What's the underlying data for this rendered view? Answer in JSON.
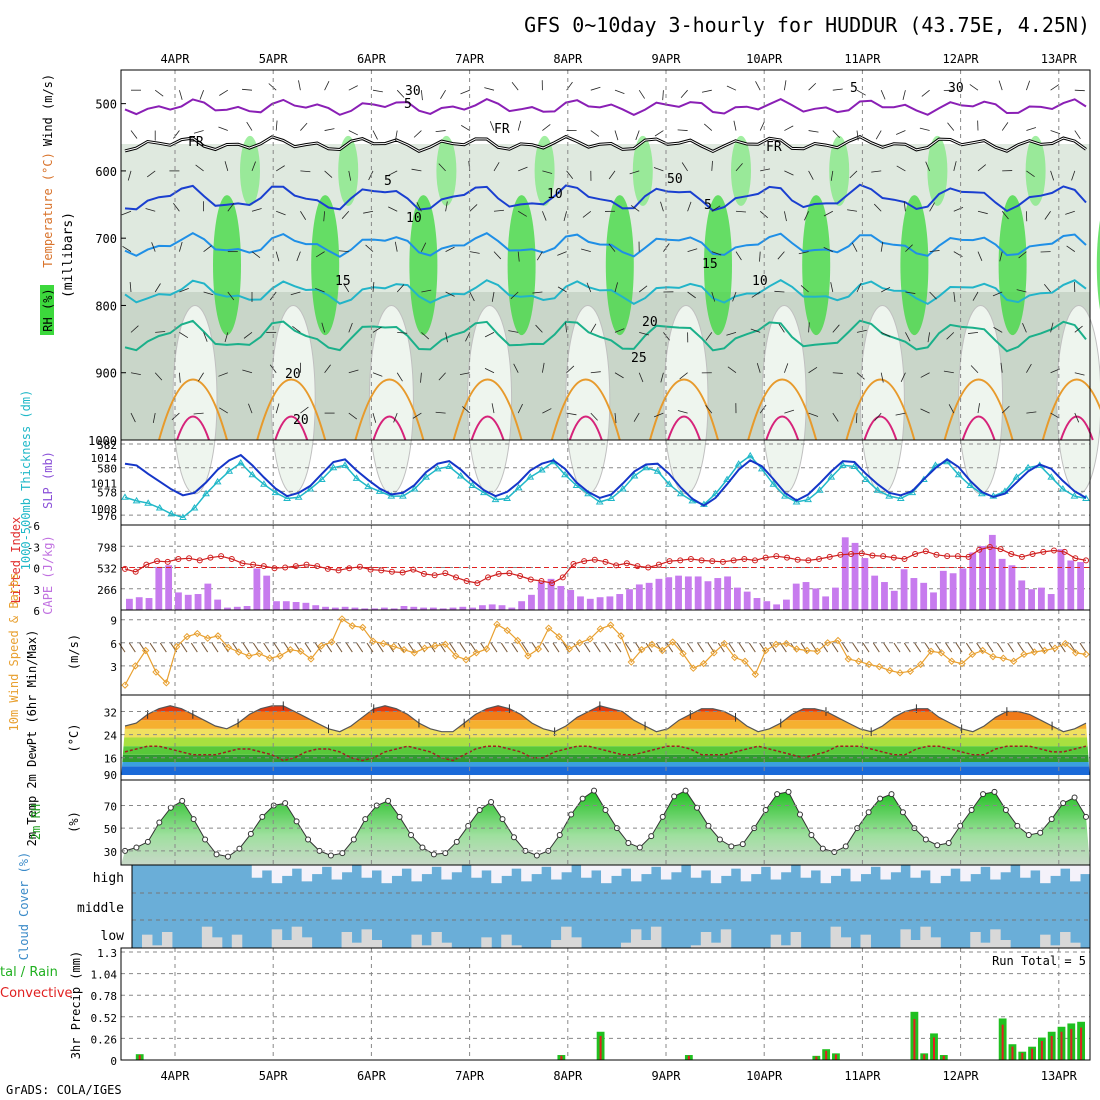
{
  "title": "GFS 0~10day 3-hourly for HUDDUR (43.75E, 4.25N)",
  "credit": "GrADS: COLA/IGES",
  "dates": [
    "4APR",
    "5APR",
    "6APR",
    "7APR",
    "8APR",
    "9APR",
    "10APR",
    "11APR",
    "12APR",
    "13APR"
  ],
  "colors": {
    "panel_border": "#000000",
    "grid": "#999999"
  },
  "panels": {
    "upper": {
      "ylabel": "(millibars)",
      "yticks": [
        500,
        600,
        700,
        800,
        900,
        1000
      ],
      "legend": {
        "rh": "RH (%)",
        "temp": "Temperature (°C)",
        "wind": "Wind (m/s)"
      },
      "contour_labels": [
        "5",
        "FR",
        "FR",
        "FR",
        "5",
        "5",
        "10",
        "15",
        "15",
        "10",
        "20",
        "20",
        "25",
        "20",
        "5",
        "30",
        "30",
        "50",
        "10"
      ]
    },
    "slp": {
      "ylabel_left": "1000-500mb Thickness (dm)",
      "ylabel_right": "SLP (mb)",
      "yticks_left": [
        576,
        578,
        580,
        582
      ],
      "yticks_right": [
        1008,
        1011,
        1014
      ]
    },
    "cape": {
      "ylabel_left": "Lifted Index",
      "ylabel_right": "CAPE (J/kg)",
      "yticks_left": [
        "6",
        "3",
        "0",
        "-3",
        "-6"
      ],
      "yticks_right": [
        266,
        532,
        798
      ]
    },
    "wind10m": {
      "ylabel": "10m Wind Speed & Barbs",
      "unit": "(m/s)",
      "yticks": [
        3,
        6,
        9
      ]
    },
    "temp2m": {
      "ylabel": "2m Temp 2m DewPt (6hr Min/Max)",
      "unit": "(°C)",
      "yticks": [
        16,
        24,
        32
      ],
      "extra_tick": "90"
    },
    "rh2m": {
      "ylabel": "2m RH",
      "unit": "(%)",
      "yticks": [
        30,
        50,
        70
      ]
    },
    "cloud": {
      "ylabel": "Cloud Cover (%)",
      "levels": [
        "high",
        "middle",
        "low"
      ]
    },
    "precip": {
      "ylabel": "3hr Precip (mm)",
      "side_label_a": "tal / Rain",
      "side_label_b": "Convective",
      "yticks": [
        "0",
        "0.26",
        "0.52",
        "0.78",
        "1.04",
        "1.3"
      ],
      "run_total": "Run Total = 5"
    }
  },
  "chart_data": [
    {
      "type": "line",
      "panel": "slp",
      "x_start": "3APR 12Z",
      "x_step_hours": 3,
      "series": [
        {
          "values": [
            577.5,
            577.2,
            577.0,
            576.6,
            576.1,
            575.8,
            576.6,
            577.8,
            578.8,
            579.7,
            580.4,
            579.4,
            578.6,
            577.9,
            577.4,
            577.5,
            578.2,
            579.0,
            580.0,
            580.2,
            579.1,
            578.4,
            578.0,
            577.6,
            577.6,
            578.2,
            579.2,
            579.9,
            580.1,
            579.3,
            578.5,
            577.9,
            577.3,
            577.4,
            578.3,
            579.2,
            579.8,
            580.5,
            579.4,
            578.5,
            577.8,
            577.1,
            577.4,
            578.2,
            579.3,
            580.0,
            579.7,
            578.6,
            577.8,
            577.2,
            576.9,
            577.8,
            579.0,
            580.3,
            581.0,
            579.9,
            578.6,
            577.6,
            577.1,
            577.3,
            578.1,
            579.2,
            580.2,
            580.1,
            579.0,
            578.1,
            577.6,
            577.4,
            577.9,
            579.0,
            580.2,
            580.5,
            579.4,
            578.5,
            577.8,
            577.6,
            578.0,
            579.2,
            580.0,
            580.2,
            579.2,
            578.2,
            577.6,
            577.4
          ]
        },
        {
          "values": [
            1013.2,
            1013.0,
            1012.0,
            1011.1,
            1010.2,
            1009.5,
            1009.8,
            1011.0,
            1012.5,
            1013.6,
            1014.2,
            1013.0,
            1011.6,
            1010.3,
            1009.4,
            1009.8,
            1010.6,
            1012.0,
            1013.4,
            1013.7,
            1012.4,
            1011.3,
            1010.3,
            1009.6,
            1009.8,
            1010.7,
            1012.2,
            1013.2,
            1013.5,
            1012.5,
            1011.2,
            1010.1,
            1009.4,
            1009.9,
            1011.0,
            1012.4,
            1013.2,
            1013.6,
            1012.6,
            1011.0,
            1009.9,
            1009.2,
            1009.6,
            1010.9,
            1012.3,
            1013.1,
            1013.2,
            1012.0,
            1010.4,
            1009.1,
            1008.3,
            1009.2,
            1010.8,
            1012.5,
            1013.6,
            1012.9,
            1011.4,
            1009.8,
            1008.9,
            1009.6,
            1010.9,
            1012.3,
            1013.5,
            1013.4,
            1012.0,
            1010.8,
            1009.8,
            1009.5,
            1010.0,
            1011.4,
            1012.7,
            1013.7,
            1012.8,
            1011.2,
            1009.9,
            1009.3,
            1009.7,
            1011.0,
            1012.3,
            1013.1,
            1012.6,
            1011.2,
            1010.0,
            1009.2
          ]
        }
      ]
    },
    {
      "type": "bar",
      "panel": "cape",
      "values": [
        140,
        160,
        150,
        540,
        560,
        220,
        190,
        200,
        330,
        130,
        30,
        40,
        50,
        520,
        430,
        110,
        110,
        100,
        90,
        60,
        40,
        30,
        40,
        30,
        20,
        20,
        30,
        20,
        50,
        40,
        30,
        30,
        20,
        30,
        40,
        30,
        60,
        70,
        60,
        30,
        110,
        190,
        350,
        390,
        300,
        250,
        170,
        140,
        160,
        170,
        200,
        260,
        320,
        340,
        390,
        410,
        430,
        420,
        420,
        360,
        400,
        420,
        280,
        230,
        150,
        110,
        70,
        130,
        330,
        350,
        270,
        170,
        280,
        910,
        840,
        650,
        430,
        350,
        240,
        510,
        400,
        340,
        220,
        490,
        460,
        520,
        720,
        800,
        940,
        640,
        560,
        370,
        260,
        280,
        200,
        760,
        620,
        600
      ]
    },
    {
      "type": "line",
      "panel": "cape",
      "name_ref": "Lifted Index",
      "values": [
        0.2,
        0.6,
        -0.4,
        -0.9,
        -0.8,
        -1.2,
        -1.3,
        -1.0,
        -1.4,
        -1.6,
        -1.2,
        -0.6,
        -0.4,
        -0.2,
        0.1,
        0.0,
        -0.2,
        -0.4,
        -0.2,
        0.2,
        0.4,
        0.1,
        -0.1,
        0.3,
        0.4,
        0.6,
        0.7,
        0.3,
        0.9,
        1.1,
        0.8,
        1.4,
        1.9,
        2.2,
        1.4,
        0.9,
        0.8,
        1.2,
        1.7,
        1.9,
        2.2,
        1.4,
        -0.5,
        -0.9,
        -1.1,
        -0.8,
        -0.3,
        -0.6,
        -0.2,
        0.0,
        -0.4,
        -0.9,
        -1.0,
        -1.2,
        -1.0,
        -0.9,
        -0.8,
        -1.0,
        -1.2,
        -1.0,
        -1.4,
        -1.6,
        -1.4,
        -1.1,
        -1.0,
        -1.2,
        -1.5,
        -1.8,
        -1.9,
        -2.0,
        -1.7,
        -1.6,
        -1.4,
        -1.2,
        -1.9,
        -2.3,
        -1.8,
        -1.6,
        -1.6,
        -1.5,
        -2.5,
        -2.9,
        -2.6,
        -1.9,
        -1.5,
        -1.9,
        -2.2,
        -2.4,
        -2.2,
        -1.3,
        -1.0
      ]
    },
    {
      "type": "line",
      "panel": "wind10m",
      "values": [
        0.5,
        3.0,
        5.0,
        2.2,
        0.8,
        5.5,
        6.8,
        7.2,
        6.6,
        6.9,
        5.4,
        4.8,
        4.3,
        4.6,
        4.0,
        4.3,
        5.1,
        4.9,
        3.9,
        5.6,
        6.1,
        9.1,
        8.2,
        8.0,
        6.2,
        5.9,
        5.5,
        5.1,
        4.7,
        5.3,
        5.6,
        5.8,
        4.3,
        3.8,
        4.7,
        5.2,
        8.4,
        7.6,
        6.3,
        4.3,
        5.2,
        7.9,
        6.8,
        5.2,
        6.0,
        6.5,
        7.8,
        8.3,
        6.9,
        3.5,
        5.1,
        5.8,
        5.0,
        6.1,
        4.6,
        2.7,
        3.3,
        4.7,
        5.9,
        4.1,
        3.6,
        1.9,
        5.0,
        5.8,
        5.9,
        5.2,
        5.0,
        4.9,
        6.0,
        6.3,
        3.9,
        3.6,
        3.2,
        2.9,
        2.4,
        2.1,
        2.3,
        3.2,
        4.9,
        4.7,
        3.6,
        3.3,
        4.5,
        5.0,
        4.2,
        4.0,
        3.6,
        4.5,
        4.8,
        5.0,
        5.3,
        5.9,
        4.7,
        4.5
      ]
    },
    {
      "type": "area",
      "panel": "temp2m",
      "series": [
        {
          "values": [
            27,
            28,
            31,
            33,
            34,
            33,
            31,
            29,
            27,
            26,
            28,
            31,
            33,
            34,
            34,
            32,
            30,
            28,
            26,
            25,
            27,
            30,
            33,
            34,
            33,
            31,
            28,
            26,
            25,
            25,
            28,
            31,
            33,
            34,
            33,
            31,
            28,
            26,
            25,
            27,
            30,
            32,
            34,
            33,
            32,
            29,
            27,
            25,
            26,
            29,
            31,
            33,
            33,
            32,
            30,
            27,
            25,
            26,
            28,
            31,
            33,
            33,
            32,
            30,
            28,
            26,
            25,
            27,
            30,
            32,
            33,
            33,
            30,
            28,
            26,
            25,
            27,
            30,
            32,
            32,
            31,
            29,
            27,
            25,
            26,
            28
          ]
        },
        {
          "values": [
            18,
            19,
            20,
            20,
            19,
            18,
            17,
            17,
            17,
            18,
            19,
            19,
            18,
            17,
            15,
            16,
            18,
            19,
            19,
            18,
            16,
            15,
            16,
            18,
            19,
            20,
            19,
            18,
            16,
            15,
            17,
            19,
            20,
            20,
            19,
            18,
            16,
            16,
            18,
            19,
            20,
            20,
            19,
            18,
            17,
            17,
            18,
            19,
            20,
            20,
            19,
            17,
            17,
            17,
            18,
            19,
            20,
            19,
            18,
            17,
            16,
            17,
            18,
            20,
            20,
            20,
            19,
            18,
            17,
            17,
            19,
            20,
            20,
            19,
            18,
            17,
            17,
            19,
            20,
            20,
            20,
            19,
            18,
            18,
            19,
            20
          ]
        }
      ]
    },
    {
      "type": "area",
      "panel": "rh2m",
      "values": [
        30,
        33,
        38,
        55,
        68,
        74,
        58,
        40,
        27,
        25,
        32,
        45,
        60,
        70,
        72,
        56,
        40,
        30,
        26,
        28,
        40,
        58,
        70,
        74,
        60,
        44,
        33,
        27,
        28,
        38,
        52,
        66,
        73,
        58,
        42,
        30,
        26,
        30,
        44,
        62,
        76,
        83,
        66,
        50,
        37,
        33,
        43,
        60,
        78,
        83,
        68,
        52,
        40,
        34,
        36,
        50,
        66,
        80,
        82,
        62,
        44,
        32,
        29,
        34,
        50,
        64,
        76,
        80,
        64,
        50,
        40,
        35,
        37,
        52,
        66,
        80,
        82,
        66,
        52,
        44,
        46,
        58,
        72,
        77,
        60
      ]
    },
    {
      "type": "bar",
      "panel": "precip",
      "values": [
        0,
        0.07,
        0,
        0,
        0,
        0,
        0,
        0,
        0,
        0,
        0,
        0,
        0,
        0,
        0,
        0,
        0,
        0,
        0,
        0,
        0,
        0,
        0,
        0,
        0,
        0,
        0,
        0,
        0,
        0,
        0,
        0,
        0,
        0,
        0,
        0,
        0,
        0,
        0,
        0,
        0,
        0,
        0,
        0,
        0.06,
        0,
        0,
        0,
        0.34,
        0,
        0,
        0,
        0,
        0,
        0,
        0,
        0,
        0.06,
        0,
        0,
        0,
        0,
        0,
        0,
        0,
        0,
        0,
        0,
        0,
        0,
        0.05,
        0.13,
        0.08,
        0,
        0,
        0,
        0,
        0,
        0,
        0,
        0.58,
        0.08,
        0.32,
        0.06,
        0,
        0,
        0,
        0,
        0,
        0.5,
        0.19,
        0.1,
        0.16,
        0.27,
        0.34,
        0.4,
        0.44,
        0.46
      ]
    }
  ]
}
